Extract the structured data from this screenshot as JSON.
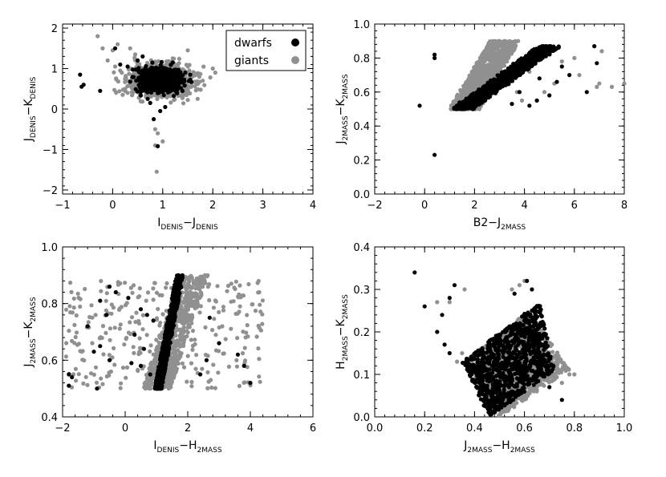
{
  "chart_data": [
    {
      "type": "scatter",
      "xlabel": {
        "main": "I",
        "sub1": "DENIS",
        "mid": "−J",
        "sub2": "DENIS"
      },
      "ylabel": {
        "main": "J",
        "sub1": "DENIS",
        "mid": "−K",
        "sub2": "DENIS"
      },
      "xlim": [
        -1,
        4
      ],
      "ylim": [
        -2.1,
        2.1
      ],
      "xticks": [
        -1,
        0,
        1,
        2,
        3,
        4
      ],
      "yticks": [
        -2,
        -1,
        0,
        1,
        2
      ],
      "xtick_labels": [
        "−1",
        "0",
        "1",
        "2",
        "3",
        "4"
      ],
      "ytick_labels": [
        "−2",
        "−1",
        "0",
        "1",
        "2"
      ],
      "legend": {
        "position": "top-right",
        "entries": [
          "dwarfs",
          "giants"
        ]
      },
      "series": [
        {
          "name": "giants",
          "color": "#909090",
          "points": [
            [
              -0.3,
              1.8
            ],
            [
              -0.2,
              1.5
            ],
            [
              0,
              1.45
            ],
            [
              0.1,
              1.6
            ],
            [
              0.35,
              1.5
            ],
            [
              0.45,
              1.35
            ],
            [
              1.5,
              1.45
            ],
            [
              2.0,
              1.0
            ],
            [
              2.05,
              0.9
            ],
            [
              2.85,
              1.82
            ],
            [
              1.95,
              0.78
            ],
            [
              1.8,
              0.7
            ],
            [
              1.7,
              0.62
            ],
            [
              1.65,
              0.88
            ],
            [
              0.25,
              0.5
            ],
            [
              0.3,
              0.4
            ],
            [
              0.2,
              0.35
            ],
            [
              0.85,
              -0.9
            ],
            [
              0.88,
              -1.55
            ],
            [
              1.0,
              -0.8
            ],
            [
              0.9,
              -0.6
            ],
            [
              0.85,
              -0.5
            ],
            [
              0.15,
              0.95
            ],
            [
              0.05,
              1.05
            ],
            [
              -0.1,
              1.2
            ],
            [
              1.3,
              1.1
            ],
            [
              1.2,
              1.25
            ],
            [
              1.4,
              0.3
            ],
            [
              1.45,
              0.4
            ],
            [
              1.55,
              0.55
            ]
          ],
          "cloud": {
            "cx": 0.95,
            "cy": 0.7,
            "sx": 0.35,
            "sy": 0.22,
            "n": 550
          }
        },
        {
          "name": "dwarfs",
          "color": "#000000",
          "points": [
            [
              -0.65,
              0.85
            ],
            [
              -0.62,
              0.55
            ],
            [
              -0.58,
              0.6
            ],
            [
              -0.25,
              0.45
            ],
            [
              0.05,
              1.5
            ],
            [
              0.15,
              1.1
            ],
            [
              0.3,
              1.05
            ],
            [
              0.5,
              1.2
            ],
            [
              0.6,
              1.3
            ],
            [
              0.82,
              -0.25
            ],
            [
              0.9,
              -0.92
            ],
            [
              0.95,
              -0.05
            ],
            [
              1.05,
              0.05
            ],
            [
              1.2,
              1.15
            ],
            [
              1.3,
              0.95
            ],
            [
              1.55,
              0.85
            ],
            [
              1.45,
              0.9
            ],
            [
              0.75,
              0.15
            ],
            [
              0.7,
              0.25
            ]
          ],
          "cloud": {
            "cx": 0.95,
            "cy": 0.72,
            "sx": 0.22,
            "sy": 0.15,
            "n": 700
          }
        }
      ]
    },
    {
      "type": "scatter",
      "xlabel": {
        "main": "B2−J",
        "sub1": "2MASS",
        "mid": "",
        "sub2": ""
      },
      "ylabel": {
        "main": "J",
        "sub1": "2MASS",
        "mid": "−K",
        "sub2": "2MASS"
      },
      "xlim": [
        -2,
        8
      ],
      "ylim": [
        0,
        1.0
      ],
      "xticks": [
        -2,
        0,
        2,
        4,
        6,
        8
      ],
      "yticks": [
        0,
        0.2,
        0.4,
        0.6,
        0.8,
        1.0
      ],
      "xtick_labels": [
        "−2",
        "0",
        "2",
        "4",
        "6",
        "8"
      ],
      "ytick_labels": [
        "0.0",
        "0.2",
        "0.4",
        "0.6",
        "0.8",
        "1.0"
      ],
      "series": [
        {
          "name": "giants",
          "color": "#909090",
          "points": [
            [
              7.1,
              0.84
            ],
            [
              7.0,
              0.65
            ],
            [
              6.9,
              0.63
            ],
            [
              8.0,
              0.65
            ],
            [
              7.5,
              0.63
            ],
            [
              6.2,
              0.7
            ],
            [
              5.2,
              0.65
            ],
            [
              4.8,
              0.6
            ],
            [
              4.2,
              0.72
            ],
            [
              3.7,
              0.6
            ],
            [
              3.9,
              0.55
            ],
            [
              4.5,
              0.55
            ],
            [
              5.5,
              0.78
            ],
            [
              6.0,
              0.8
            ]
          ],
          "band": {
            "x0": 1.6,
            "y0": 0.5,
            "x1": 3.2,
            "y1": 0.9,
            "w": 1.2,
            "n": 1100
          }
        },
        {
          "name": "dwarfs",
          "color": "#000000",
          "points": [
            [
              -0.2,
              0.52
            ],
            [
              0.4,
              0.23
            ],
            [
              0.4,
              0.82
            ],
            [
              0.4,
              0.8
            ],
            [
              6.8,
              0.87
            ],
            [
              6.9,
              0.77
            ],
            [
              6.5,
              0.6
            ],
            [
              5.8,
              0.7
            ],
            [
              5.5,
              0.75
            ],
            [
              5.0,
              0.87
            ],
            [
              5.0,
              0.58
            ],
            [
              4.5,
              0.55
            ],
            [
              4.2,
              0.52
            ],
            [
              3.5,
              0.53
            ],
            [
              3.8,
              0.6
            ],
            [
              4.6,
              0.68
            ],
            [
              5.3,
              0.66
            ],
            [
              4.0,
              0.75
            ]
          ],
          "band": {
            "x0": 1.5,
            "y0": 0.5,
            "x1": 5.0,
            "y1": 0.87,
            "w": 0.8,
            "n": 900
          }
        }
      ]
    },
    {
      "type": "scatter",
      "xlabel": {
        "main": "I",
        "sub1": "DENIS",
        "mid": "−H",
        "sub2": "2MASS"
      },
      "ylabel": {
        "main": "J",
        "sub1": "2MASS",
        "mid": "−K",
        "sub2": "2MASS"
      },
      "xlim": [
        -2,
        6
      ],
      "ylim": [
        0.4,
        1.0
      ],
      "xticks": [
        -2,
        0,
        2,
        4,
        6
      ],
      "yticks": [
        0.4,
        0.6,
        0.8,
        1.0
      ],
      "xtick_labels": [
        "−2",
        "0",
        "2",
        "4",
        "6"
      ],
      "ytick_labels": [
        "0.4",
        "0.6",
        "0.8",
        "1.0"
      ],
      "series": [
        {
          "name": "giants",
          "color": "#909090",
          "scatter": {
            "x0": -1.9,
            "x1": 4.4,
            "y0": 0.5,
            "y1": 0.88,
            "n": 320
          },
          "band": {
            "x0": 1.0,
            "y0": 0.5,
            "x1": 2.2,
            "y1": 0.9,
            "w": 0.9,
            "n": 700
          }
        },
        {
          "name": "dwarfs",
          "color": "#000000",
          "points": [
            [
              -1.8,
              0.55
            ],
            [
              -1.7,
              0.54
            ],
            [
              -1.8,
              0.51
            ],
            [
              -0.5,
              0.86
            ],
            [
              -0.3,
              0.84
            ],
            [
              -0.8,
              0.81
            ],
            [
              -0.6,
              0.76
            ],
            [
              0.1,
              0.82
            ],
            [
              0.5,
              0.78
            ],
            [
              0.7,
              0.76
            ],
            [
              0.9,
              0.74
            ],
            [
              -1.2,
              0.72
            ],
            [
              -0.8,
              0.65
            ],
            [
              -0.5,
              0.6
            ],
            [
              -1.0,
              0.63
            ],
            [
              0.3,
              0.69
            ],
            [
              0.6,
              0.64
            ],
            [
              0.8,
              0.55
            ],
            [
              0.2,
              0.59
            ],
            [
              -0.9,
              0.5
            ],
            [
              0.5,
              0.58
            ],
            [
              3.6,
              0.62
            ],
            [
              3.8,
              0.58
            ],
            [
              4.0,
              0.52
            ],
            [
              3.0,
              0.66
            ],
            [
              2.7,
              0.75
            ],
            [
              2.4,
              0.55
            ],
            [
              2.6,
              0.6
            ]
          ],
          "band": {
            "x0": 1.05,
            "y0": 0.5,
            "x1": 1.75,
            "y1": 0.9,
            "w": 0.22,
            "n": 800
          }
        }
      ]
    },
    {
      "type": "scatter",
      "xlabel": {
        "main": "J",
        "sub1": "2MASS",
        "mid": "−H",
        "sub2": "2MASS"
      },
      "ylabel": {
        "main": "H",
        "sub1": "2MASS",
        "mid": "−K",
        "sub2": "2MASS"
      },
      "xlim": [
        0,
        1.0
      ],
      "ylim": [
        0,
        0.4
      ],
      "xticks": [
        0,
        0.2,
        0.4,
        0.6,
        0.8,
        1.0
      ],
      "yticks": [
        0,
        0.1,
        0.2,
        0.3,
        0.4
      ],
      "xtick_labels": [
        "0.0",
        "0.2",
        "0.4",
        "0.6",
        "0.8",
        "1.0"
      ],
      "ytick_labels": [
        "0.0",
        "0.1",
        "0.2",
        "0.3",
        "0.4"
      ],
      "series": [
        {
          "name": "giants",
          "color": "#909090",
          "points": [
            [
              0.6,
              0.32
            ],
            [
              0.58,
              0.31
            ],
            [
              0.55,
              0.3
            ],
            [
              0.25,
              0.27
            ],
            [
              0.3,
              0.27
            ],
            [
              0.36,
              0.3
            ],
            [
              0.78,
              0.1
            ],
            [
              0.8,
              0.1
            ],
            [
              0.75,
              0.08
            ],
            [
              0.6,
              -0.01
            ],
            [
              0.35,
              0.15
            ],
            [
              0.33,
              0.13
            ]
          ],
          "quad": [
            [
              0.36,
              0.13
            ],
            [
              0.62,
              0.25
            ],
            [
              0.78,
              0.11
            ],
            [
              0.5,
              0.0
            ]
          ],
          "n": 1100
        },
        {
          "name": "dwarfs",
          "color": "#000000",
          "points": [
            [
              0.16,
              0.34
            ],
            [
              0.32,
              0.31
            ],
            [
              0.3,
              0.28
            ],
            [
              0.27,
              0.24
            ],
            [
              0.2,
              0.26
            ],
            [
              0.25,
              0.2
            ],
            [
              0.61,
              0.32
            ],
            [
              0.63,
              0.3
            ],
            [
              0.56,
              0.29
            ],
            [
              0.3,
              0.15
            ],
            [
              0.28,
              0.17
            ],
            [
              0.75,
              0.04
            ],
            [
              0.7,
              0.07
            ]
          ],
          "quad": [
            [
              0.35,
              0.13
            ],
            [
              0.66,
              0.27
            ],
            [
              0.72,
              0.11
            ],
            [
              0.46,
              0.0
            ]
          ],
          "n": 1000
        }
      ]
    }
  ]
}
